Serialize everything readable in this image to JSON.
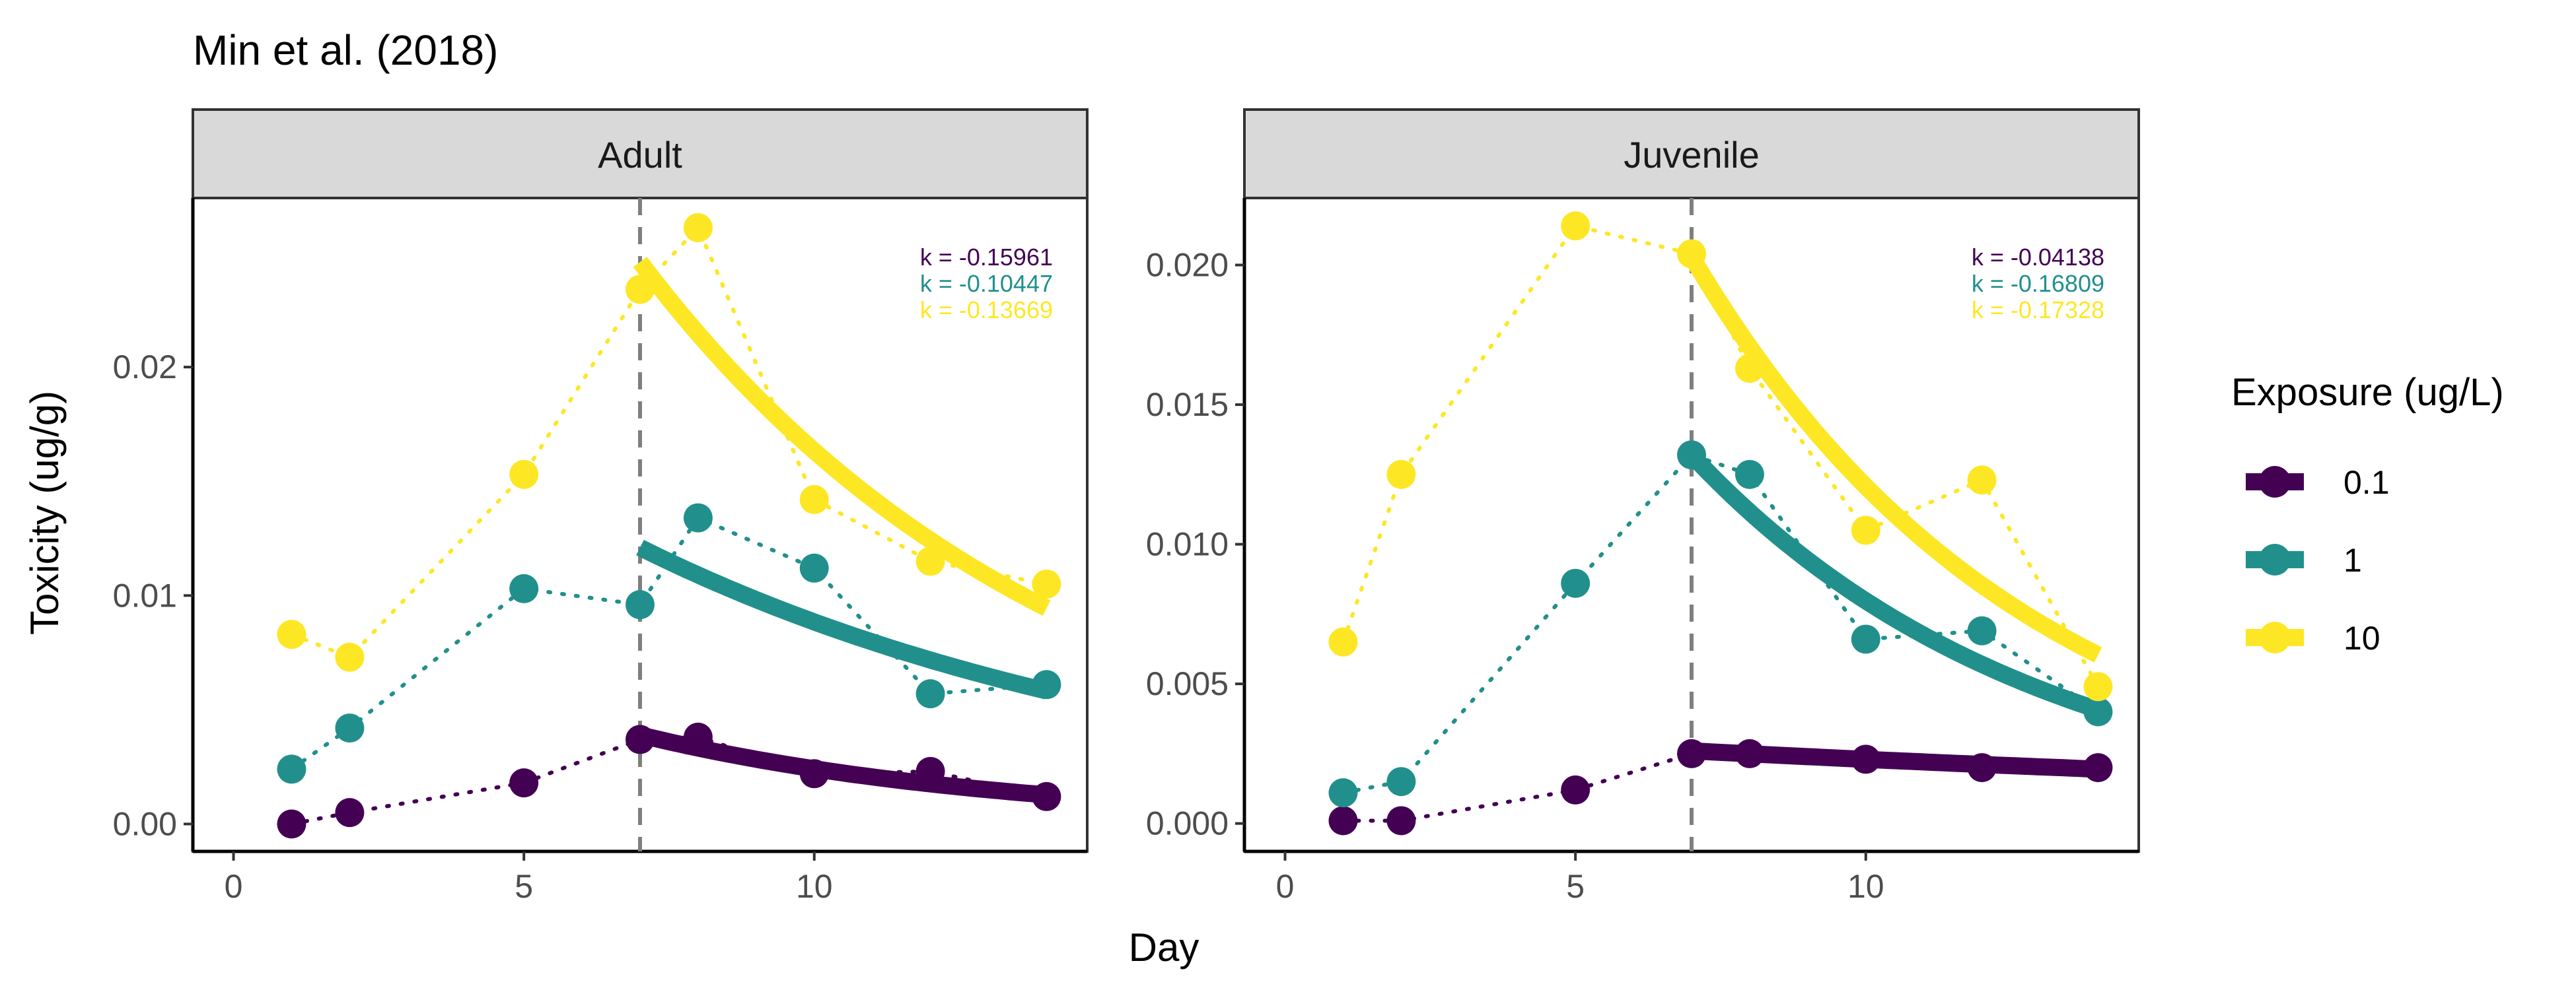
{
  "chart_data": {
    "type": "scatter",
    "title": "Min et al. (2018)",
    "xlabel": "Day",
    "ylabel": "Toxicity (ug/g)",
    "xlim": [
      -0.7,
      14.7
    ],
    "reference_line_x": 7,
    "legend": {
      "title": "Exposure (ug/L)",
      "placement": "right",
      "items": [
        {
          "label": "0.1",
          "color": "#440154"
        },
        {
          "label": "1",
          "color": "#21908C"
        },
        {
          "label": "10",
          "color": "#FDE725"
        }
      ]
    },
    "panels": [
      {
        "name": "Adult",
        "ylim": [
          -0.0012,
          0.0274
        ],
        "xticks": [
          0,
          5,
          10
        ],
        "yticks": [
          {
            "value": 0,
            "label": "0.00"
          },
          {
            "value": 0.01,
            "label": "0.01"
          },
          {
            "value": 0.02,
            "label": "0.02"
          }
        ],
        "series": [
          {
            "exposure": "0.1",
            "color": "#440154",
            "x": [
              1,
              2,
              5,
              7,
              8,
              10,
              12,
              14
            ],
            "y": [
              0.0,
              0.0005,
              0.0018,
              0.0037,
              0.0038,
              0.0022,
              0.0023,
              0.0012
            ],
            "fit": {
              "x0": 7,
              "y0": 0.0039,
              "k": -0.15961,
              "k_label": "k = -0.15961"
            }
          },
          {
            "exposure": "1",
            "color": "#21908C",
            "x": [
              1,
              2,
              5,
              7,
              8,
              10,
              12,
              14
            ],
            "y": [
              0.0024,
              0.0042,
              0.0103,
              0.0096,
              0.0134,
              0.0112,
              0.0057,
              0.0061
            ],
            "fit": {
              "x0": 7,
              "y0": 0.0121,
              "k": -0.10447,
              "k_label": "k = -0.10447"
            }
          },
          {
            "exposure": "10",
            "color": "#FDE725",
            "x": [
              1,
              2,
              5,
              7,
              8,
              10,
              12,
              14
            ],
            "y": [
              0.0083,
              0.0073,
              0.0153,
              0.0234,
              0.0261,
              0.0142,
              0.0115,
              0.0105
            ],
            "fit": {
              "x0": 7,
              "y0": 0.0246,
              "k": -0.13669,
              "k_label": "k = -0.13669"
            }
          }
        ]
      },
      {
        "name": "Juvenile",
        "ylim": [
          -0.001,
          0.0224
        ],
        "xticks": [
          0,
          5,
          10
        ],
        "yticks": [
          {
            "value": 0,
            "label": "0.000"
          },
          {
            "value": 0.005,
            "label": "0.005"
          },
          {
            "value": 0.01,
            "label": "0.010"
          },
          {
            "value": 0.015,
            "label": "0.015"
          },
          {
            "value": 0.02,
            "label": "0.020"
          }
        ],
        "series": [
          {
            "exposure": "0.1",
            "color": "#440154",
            "x": [
              1,
              2,
              5,
              7,
              8,
              10,
              12,
              14
            ],
            "y": [
              0.0001,
              0.0001,
              0.0012,
              0.0025,
              0.0025,
              0.0023,
              0.002,
              0.002
            ],
            "fit": {
              "x0": 7,
              "y0": 0.0026,
              "k": -0.04138,
              "k_label": "k = -0.04138"
            }
          },
          {
            "exposure": "1",
            "color": "#21908C",
            "x": [
              1,
              2,
              5,
              7,
              8,
              10,
              12,
              14
            ],
            "y": [
              0.0011,
              0.0015,
              0.0086,
              0.0132,
              0.0125,
              0.0066,
              0.0069,
              0.004
            ],
            "fit": {
              "x0": 7,
              "y0": 0.0132,
              "k": -0.16809,
              "k_label": "k = -0.16809"
            }
          },
          {
            "exposure": "10",
            "color": "#FDE725",
            "x": [
              1,
              2,
              5,
              7,
              8,
              10,
              12,
              14
            ],
            "y": [
              0.0065,
              0.0125,
              0.0214,
              0.0204,
              0.0163,
              0.0105,
              0.0123,
              0.0049
            ],
            "fit": {
              "x0": 7,
              "y0": 0.0203,
              "k": -0.17328,
              "k_label": "k = -0.17328"
            }
          }
        ]
      }
    ]
  }
}
